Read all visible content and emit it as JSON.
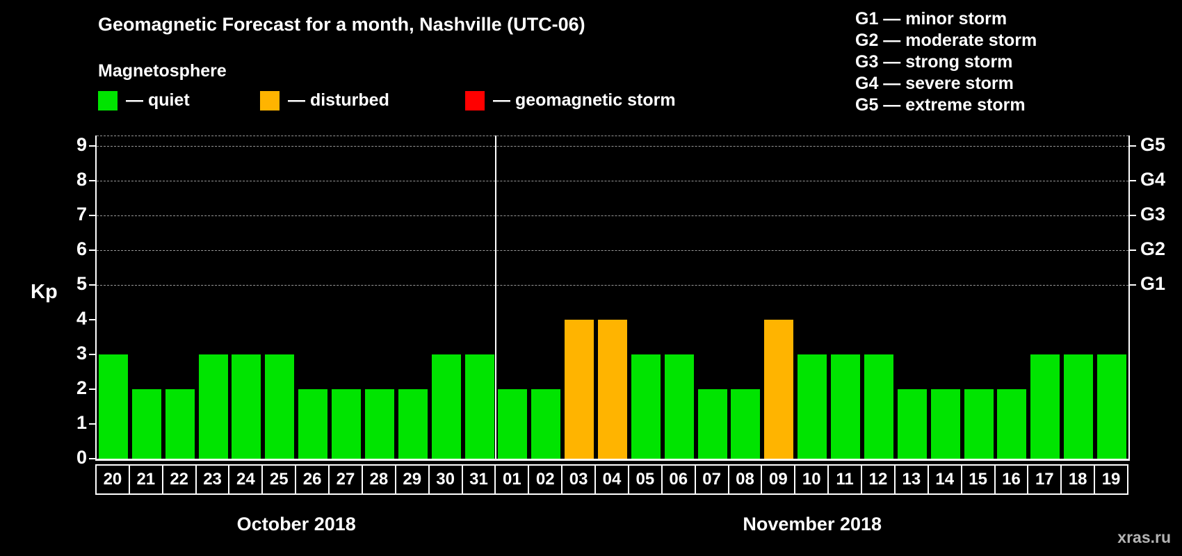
{
  "page": {
    "title": "Geomagnetic Forecast for a month, Nashville (UTC-06)",
    "watermark": "xras.ru"
  },
  "magnetosphere_legend": {
    "heading": "Magnetosphere",
    "items": [
      {
        "key": "quiet",
        "label": "— quiet",
        "color": "#00e400"
      },
      {
        "key": "disturbed",
        "label": "— disturbed",
        "color": "#ffb400"
      },
      {
        "key": "storm",
        "label": "— geomagnetic storm",
        "color": "#ff0000"
      }
    ]
  },
  "storm_scale_legend": {
    "items": [
      "G1 — minor storm",
      "G2 — moderate storm",
      "G3 — strong storm",
      "G4 — severe storm",
      "G5 — extreme storm"
    ]
  },
  "chart_data": {
    "type": "bar",
    "title": "Geomagnetic Forecast for a month, Nashville (UTC-06)",
    "xlabel": "",
    "ylabel": "Kp",
    "ylim": [
      0,
      9.3
    ],
    "yticks": [
      0,
      1,
      2,
      3,
      4,
      5,
      6,
      7,
      8,
      9
    ],
    "grid": "dashed horizontal lines at Kp 5-9",
    "gridlines_at_kp": [
      5,
      6,
      7,
      8,
      9
    ],
    "legend_position": "top-left",
    "right_axis": [
      {
        "kp": 5,
        "label": "G1"
      },
      {
        "kp": 6,
        "label": "G2"
      },
      {
        "kp": 7,
        "label": "G3"
      },
      {
        "kp": 8,
        "label": "G4"
      },
      {
        "kp": 9,
        "label": "G5"
      }
    ],
    "status_colors": {
      "quiet": "#00e400",
      "disturbed": "#ffb400",
      "storm": "#ff0000"
    },
    "groups": [
      {
        "label": "October 2018",
        "start": 0,
        "count": 12
      },
      {
        "label": "November 2018",
        "start": 12,
        "count": 19
      }
    ],
    "bars": [
      {
        "month": "October 2018",
        "day": "20",
        "kp": 3,
        "status": "quiet"
      },
      {
        "month": "October 2018",
        "day": "21",
        "kp": 2,
        "status": "quiet"
      },
      {
        "month": "October 2018",
        "day": "22",
        "kp": 2,
        "status": "quiet"
      },
      {
        "month": "October 2018",
        "day": "23",
        "kp": 3,
        "status": "quiet"
      },
      {
        "month": "October 2018",
        "day": "24",
        "kp": 3,
        "status": "quiet"
      },
      {
        "month": "October 2018",
        "day": "25",
        "kp": 3,
        "status": "quiet"
      },
      {
        "month": "October 2018",
        "day": "26",
        "kp": 2,
        "status": "quiet"
      },
      {
        "month": "October 2018",
        "day": "27",
        "kp": 2,
        "status": "quiet"
      },
      {
        "month": "October 2018",
        "day": "28",
        "kp": 2,
        "status": "quiet"
      },
      {
        "month": "October 2018",
        "day": "29",
        "kp": 2,
        "status": "quiet"
      },
      {
        "month": "October 2018",
        "day": "30",
        "kp": 3,
        "status": "quiet"
      },
      {
        "month": "October 2018",
        "day": "31",
        "kp": 3,
        "status": "quiet"
      },
      {
        "month": "November 2018",
        "day": "01",
        "kp": 2,
        "status": "quiet"
      },
      {
        "month": "November 2018",
        "day": "02",
        "kp": 2,
        "status": "quiet"
      },
      {
        "month": "November 2018",
        "day": "03",
        "kp": 4,
        "status": "disturbed"
      },
      {
        "month": "November 2018",
        "day": "04",
        "kp": 4,
        "status": "disturbed"
      },
      {
        "month": "November 2018",
        "day": "05",
        "kp": 3,
        "status": "quiet"
      },
      {
        "month": "November 2018",
        "day": "06",
        "kp": 3,
        "status": "quiet"
      },
      {
        "month": "November 2018",
        "day": "07",
        "kp": 2,
        "status": "quiet"
      },
      {
        "month": "November 2018",
        "day": "08",
        "kp": 2,
        "status": "quiet"
      },
      {
        "month": "November 2018",
        "day": "09",
        "kp": 4,
        "status": "disturbed"
      },
      {
        "month": "November 2018",
        "day": "10",
        "kp": 3,
        "status": "quiet"
      },
      {
        "month": "November 2018",
        "day": "11",
        "kp": 3,
        "status": "quiet"
      },
      {
        "month": "November 2018",
        "day": "12",
        "kp": 3,
        "status": "quiet"
      },
      {
        "month": "November 2018",
        "day": "13",
        "kp": 2,
        "status": "quiet"
      },
      {
        "month": "November 2018",
        "day": "14",
        "kp": 2,
        "status": "quiet"
      },
      {
        "month": "November 2018",
        "day": "15",
        "kp": 2,
        "status": "quiet"
      },
      {
        "month": "November 2018",
        "day": "16",
        "kp": 2,
        "status": "quiet"
      },
      {
        "month": "November 2018",
        "day": "17",
        "kp": 3,
        "status": "quiet"
      },
      {
        "month": "November 2018",
        "day": "18",
        "kp": 3,
        "status": "quiet"
      },
      {
        "month": "November 2018",
        "day": "19",
        "kp": 3,
        "status": "quiet"
      }
    ]
  }
}
